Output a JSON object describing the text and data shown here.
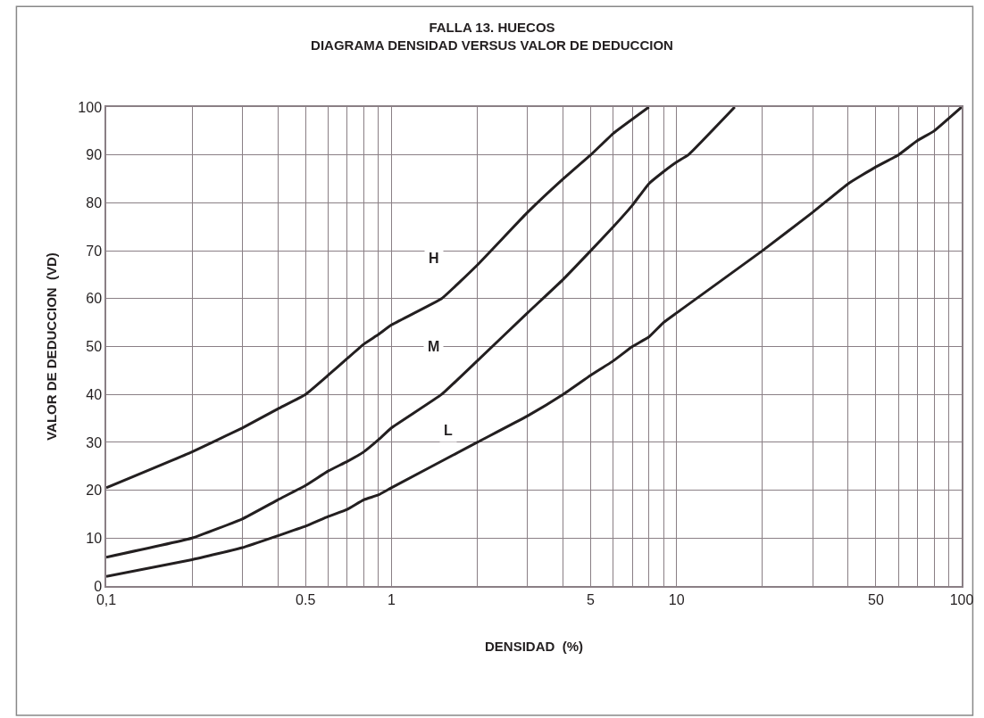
{
  "chart_data": {
    "type": "line",
    "title": "FALLA 13. HUECOS\nDIAGRAMA DENSIDAD VERSUS VALOR DE DEDUCCION",
    "xlabel": "DENSIDAD  (%)",
    "ylabel": "VALOR DE DEDUCCION  (VD)",
    "series": [
      {
        "name": "H",
        "color": "#231f20",
        "x": [
          0.1,
          0.2,
          0.3,
          0.4,
          0.5,
          0.6,
          0.7,
          0.8,
          0.9,
          1,
          1.5,
          2,
          3,
          4,
          5,
          6,
          8
        ],
        "values": [
          20.5,
          28,
          33,
          37,
          40,
          44,
          47.5,
          50.5,
          52.5,
          54.5,
          60,
          67,
          78,
          85,
          90,
          94.5,
          100
        ]
      },
      {
        "name": "M",
        "color": "#231f20",
        "x": [
          0.1,
          0.2,
          0.3,
          0.4,
          0.5,
          0.6,
          0.7,
          0.8,
          0.9,
          1,
          1.5,
          2,
          3,
          4,
          5,
          6,
          7,
          8,
          9,
          10,
          11,
          16
        ],
        "values": [
          6,
          10,
          14,
          18,
          21,
          24,
          26,
          28,
          30.5,
          33,
          40,
          47,
          57,
          64,
          70,
          75,
          79.5,
          84,
          86.5,
          88.5,
          90,
          100
        ]
      },
      {
        "name": "L",
        "color": "#231f20",
        "x": [
          0.1,
          0.2,
          0.3,
          0.4,
          0.5,
          0.6,
          0.7,
          0.8,
          0.9,
          1,
          2,
          3,
          4,
          5,
          6,
          7,
          8,
          9,
          10,
          20,
          30,
          40,
          50,
          60,
          70,
          80,
          100
        ],
        "values": [
          2,
          5.5,
          8,
          10.5,
          12.5,
          14.5,
          16,
          18,
          19,
          20.5,
          30,
          35.5,
          40,
          44,
          47,
          50,
          52,
          55,
          57,
          70,
          78,
          84,
          87.5,
          90,
          93,
          95,
          100
        ]
      }
    ],
    "log": "x",
    "xlim": [
      0.1,
      100
    ],
    "ylim": [
      0,
      100
    ],
    "xticks": [
      {
        "value": 0.1,
        "label": "0,1"
      },
      {
        "value": 0.2,
        "label": null
      },
      {
        "value": 0.3,
        "label": null
      },
      {
        "value": 0.4,
        "label": null
      },
      {
        "value": 0.5,
        "label": "0.5"
      },
      {
        "value": 0.6,
        "label": null
      },
      {
        "value": 0.7,
        "label": null
      },
      {
        "value": 0.8,
        "label": null
      },
      {
        "value": 0.9,
        "label": null
      },
      1,
      {
        "value": 2,
        "label": null
      },
      {
        "value": 3,
        "label": null
      },
      {
        "value": 4,
        "label": null
      },
      5,
      {
        "value": 6,
        "label": null
      },
      {
        "value": 7,
        "label": null
      },
      {
        "value": 8,
        "label": null
      },
      {
        "value": 9,
        "label": null
      },
      10,
      {
        "value": 20,
        "label": null
      },
      {
        "value": 30,
        "label": null
      },
      {
        "value": 40,
        "label": null
      },
      50,
      {
        "value": 60,
        "label": null
      },
      {
        "value": 70,
        "label": null
      },
      {
        "value": 80,
        "label": null
      },
      {
        "value": 90,
        "label": null
      },
      100
    ],
    "yticks": [
      0,
      10,
      20,
      30,
      40,
      50,
      60,
      70,
      80,
      90,
      100
    ],
    "grid": true,
    "line_style": "solid"
  }
}
